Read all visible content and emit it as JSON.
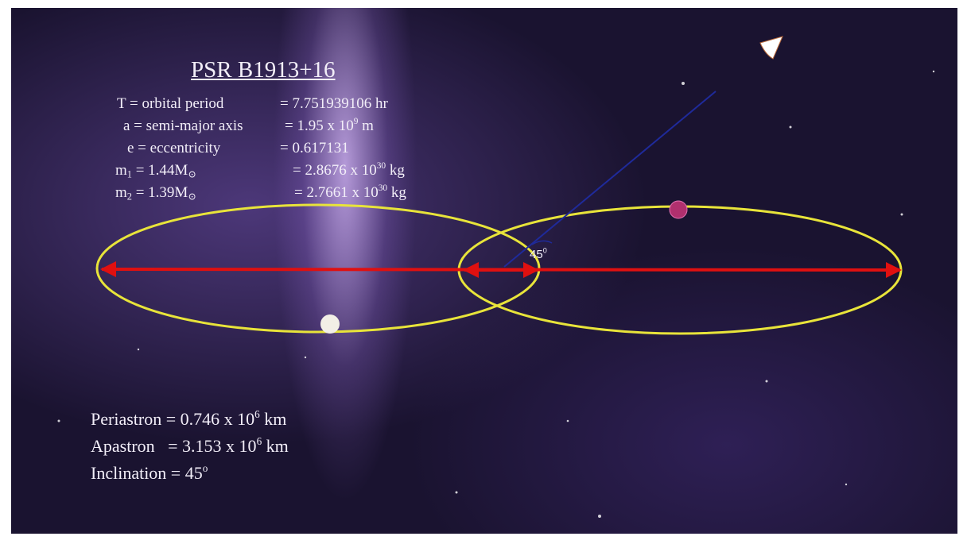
{
  "title": "PSR B1913+16",
  "parameters": [
    {
      "label": [
        {
          "text": "T = orbital period"
        }
      ],
      "value": [
        {
          "text": "= 7.751939106 hr"
        }
      ]
    },
    {
      "label": [
        {
          "text": "a = semi-major axis"
        }
      ],
      "value": [
        {
          "text": "= 1.95 x 10"
        },
        {
          "sup": "9"
        },
        {
          "text": " m"
        }
      ]
    },
    {
      "label": [
        {
          "text": "e = eccentricity"
        }
      ],
      "value": [
        {
          "text": "= 0.617131"
        }
      ]
    },
    {
      "label": [
        {
          "text": "m"
        },
        {
          "sub": "1"
        },
        {
          "text": " = 1.44M"
        },
        {
          "sub": "⊙"
        }
      ],
      "value": [
        {
          "text": "= 2.8676 x 10"
        },
        {
          "sup": "30"
        },
        {
          "text": " kg"
        }
      ]
    },
    {
      "label": [
        {
          "text": "m"
        },
        {
          "sub": "2"
        },
        {
          "text": " = 1.39M"
        },
        {
          "sub": "⊙"
        }
      ],
      "value": [
        {
          "text": "= 2.7661 x 10"
        },
        {
          "sup": "30"
        },
        {
          "text": " kg"
        }
      ]
    }
  ],
  "angle_label": [
    {
      "text": "45"
    },
    {
      "sup": "0"
    }
  ],
  "summary": [
    [
      {
        "text": "Periastron = 0.746 x 10"
      },
      {
        "sup": "6"
      },
      {
        "text": " km"
      }
    ],
    [
      {
        "text": "Apastron   = 3.153 x 10"
      },
      {
        "sup": "6"
      },
      {
        "text": " km"
      }
    ],
    [
      {
        "text": "Inclination = 45"
      },
      {
        "sup": "o"
      }
    ]
  ]
}
